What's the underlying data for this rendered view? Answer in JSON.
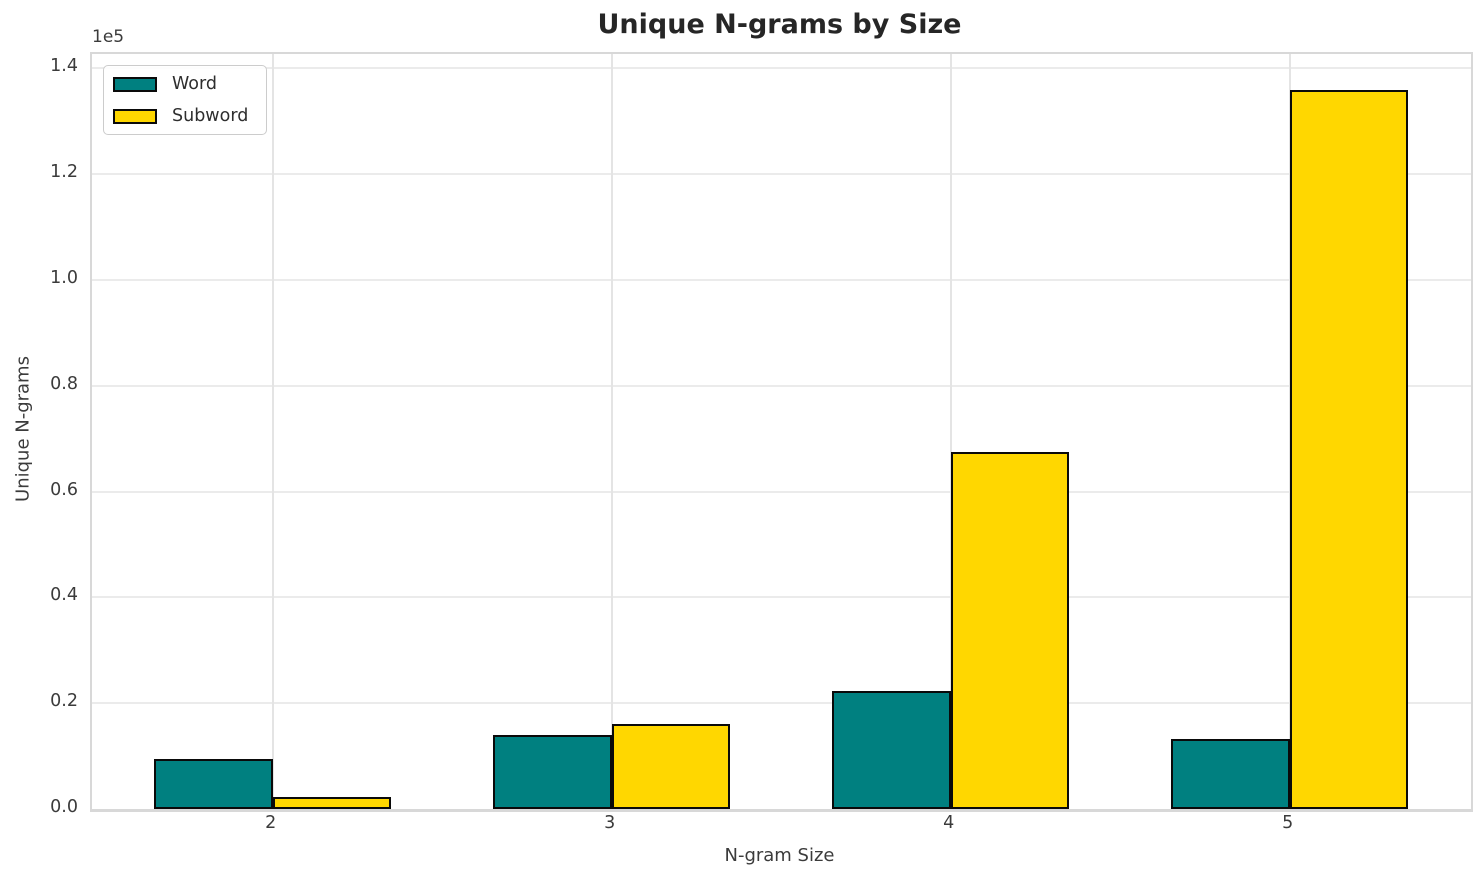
{
  "chart_data": {
    "type": "bar",
    "title": "Unique N-grams by Size",
    "xlabel": "N-gram Size",
    "ylabel": "Unique N-grams",
    "y_offset_label": "1e5",
    "categories": [
      "2",
      "3",
      "4",
      "5"
    ],
    "category_positions": [
      2,
      3,
      4,
      5
    ],
    "series": [
      {
        "name": "Word",
        "color": "#008080",
        "values": [
          9500,
          13900,
          22300,
          13300
        ]
      },
      {
        "name": "Subword",
        "color": "#ffd700",
        "values": [
          2200,
          16100,
          67400,
          135900
        ]
      }
    ],
    "bar_edge_color": "#0a0a0a",
    "bar_width": 0.35,
    "xlim": [
      1.467,
      5.535
    ],
    "ylim": [
      0,
      142700
    ],
    "ytick_step": 20000,
    "ytick_labels": [
      "0.0",
      "0.2",
      "0.4",
      "0.6",
      "0.8",
      "1.0",
      "1.2",
      "1.4"
    ],
    "grid": true,
    "legend_position": "upper left"
  }
}
